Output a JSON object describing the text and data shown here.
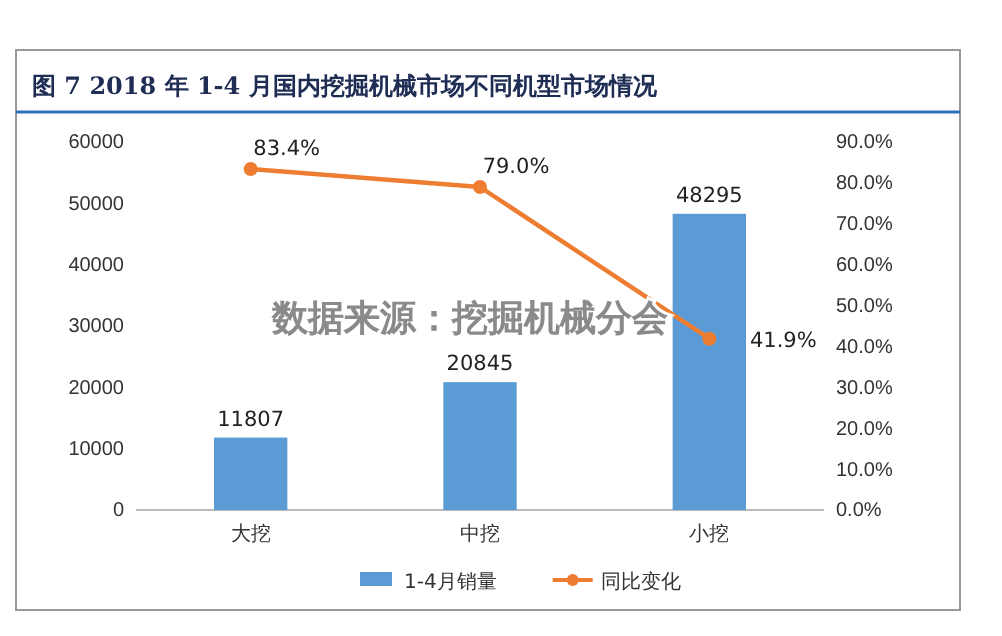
{
  "chart_data": {
    "type": "bar",
    "title": "图 7   2018 年 1-4 月国内挖掘机械市场不同机型市场情况",
    "categories": [
      "大挖",
      "中挖",
      "小挖"
    ],
    "series": [
      {
        "name": "1-4月销量",
        "color": "#5b9bd5",
        "values": [
          11807,
          20845,
          48295
        ],
        "value_labels": [
          "11807",
          "20845",
          "48295"
        ]
      },
      {
        "name": "同比变化",
        "type": "line",
        "axis": "y2",
        "color": "#ed7d31",
        "values": [
          83.4,
          79.0,
          41.9
        ],
        "value_labels": [
          "83.4%",
          "79.0%",
          "41.9%"
        ]
      }
    ],
    "ylim": [
      0,
      60000
    ],
    "yticks": [
      0,
      10000,
      20000,
      30000,
      40000,
      50000,
      60000
    ],
    "y2lim": [
      0,
      90
    ],
    "y2ticks": [
      {
        "value": 0,
        "label": "0.0%"
      },
      {
        "value": 10,
        "label": "10.0%"
      },
      {
        "value": 20,
        "label": "20.0%"
      },
      {
        "value": 30,
        "label": "30.0%"
      },
      {
        "value": 40,
        "label": "40.0%"
      },
      {
        "value": 50,
        "label": "50.0%"
      },
      {
        "value": 60,
        "label": "60.0%"
      },
      {
        "value": 70,
        "label": "70.0%"
      },
      {
        "value": 80,
        "label": "80.0%"
      },
      {
        "value": 90,
        "label": "90.0%"
      }
    ],
    "marker": "circle",
    "legend": "bottom",
    "grid": false,
    "annotations": [
      "数据来源：挖掘机械分会"
    ]
  }
}
